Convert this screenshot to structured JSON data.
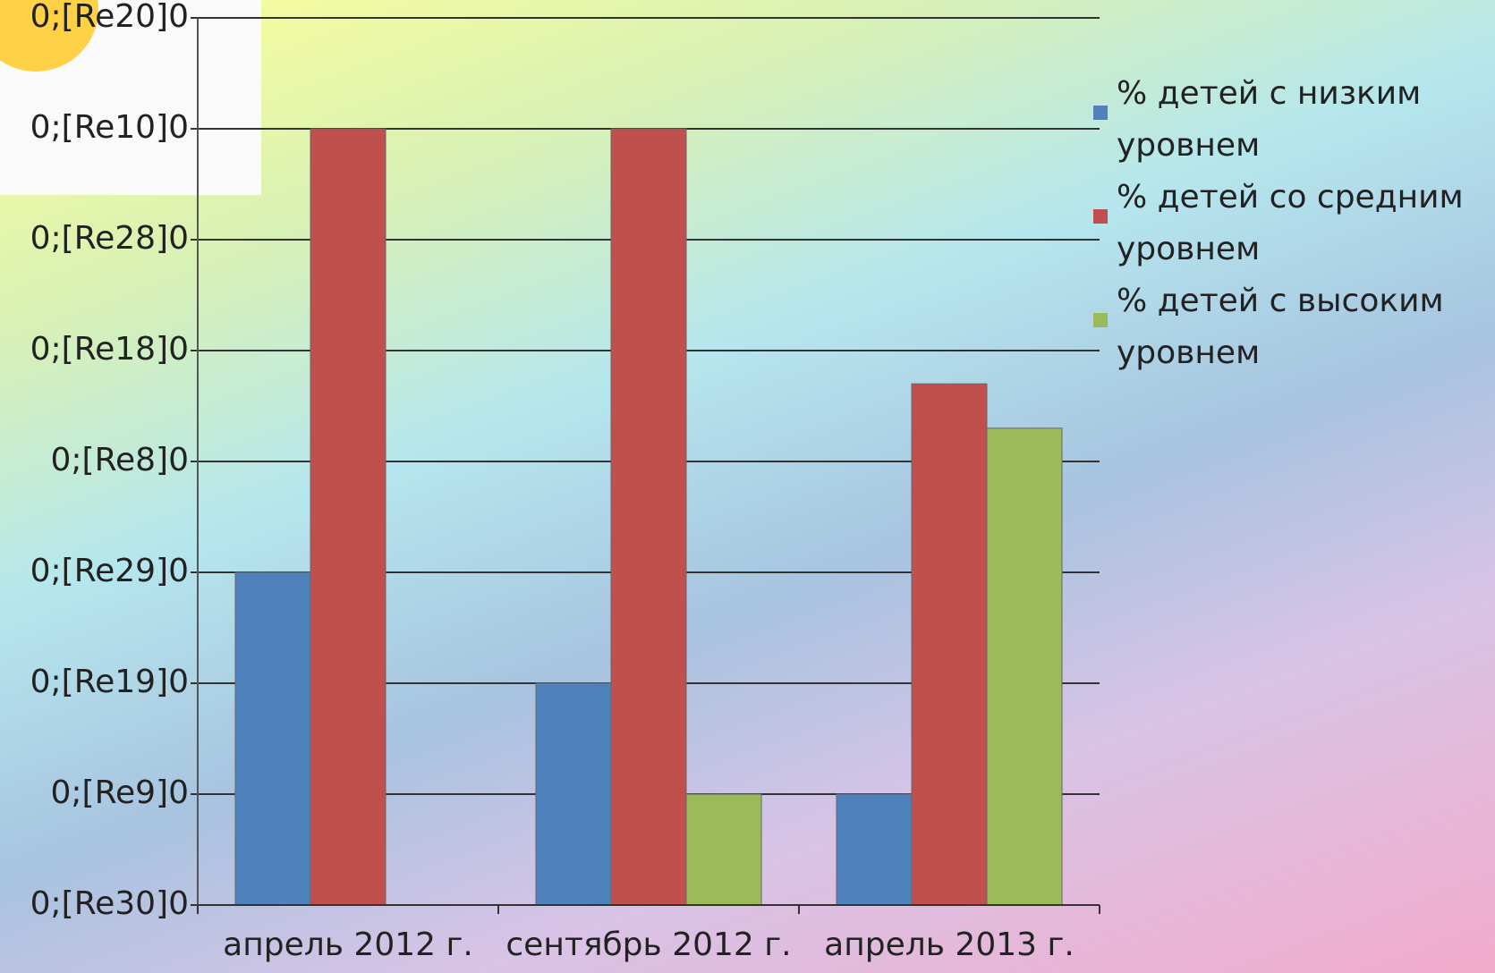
{
  "chart_data": {
    "type": "bar",
    "categories": [
      "апрель 2012 г.",
      "сентябрь 2012 г.",
      "апрель 2013 г."
    ],
    "series": [
      {
        "name": "% детей с низким уровнем",
        "color": "#4f81bd",
        "values": [
          3,
          2,
          1
        ]
      },
      {
        "name": "% детей со средним уровнем",
        "color": "#c0504d",
        "values": [
          7,
          7,
          4.7
        ]
      },
      {
        "name": "% детей с высоким уровнем",
        "color": "#9bbb59",
        "values": [
          0,
          1,
          4.3
        ]
      }
    ],
    "ylim": [
      0,
      8
    ],
    "yticks": [
      {
        "value": 0,
        "label": "0;[Re30]0"
      },
      {
        "value": 1,
        "label": "0;[Re9]0"
      },
      {
        "value": 2,
        "label": "0;[Re19]0"
      },
      {
        "value": 3,
        "label": "0;[Re29]0"
      },
      {
        "value": 4,
        "label": "0;[Re8]0"
      },
      {
        "value": 5,
        "label": "0;[Re18]0"
      },
      {
        "value": 6,
        "label": "0;[Re28]0"
      },
      {
        "value": 7,
        "label": "0;[Re10]0"
      },
      {
        "value": 8,
        "label": "0;[Re20]0"
      }
    ],
    "grid": true,
    "legend": "right"
  }
}
